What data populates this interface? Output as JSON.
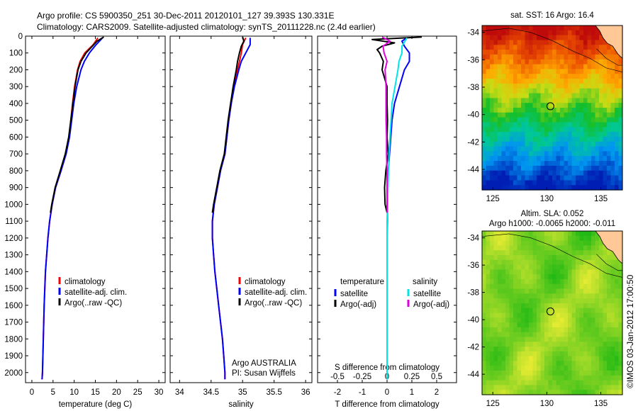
{
  "header": {
    "line1": "Argo profile: CS 5900350_251 30-Dec-2011 20120101_127 39.393S 130.331E",
    "line2": "Climatology: CARS2009. Satellite-adjusted climatology: synTS_20111228.nc (2.4d earlier)"
  },
  "colors": {
    "climatology": "#ff0000",
    "satellite": "#0000ff",
    "argo": "#000000",
    "salinity_satellite": "#00e5e5",
    "salinity_argo": "#e000e0"
  },
  "chart_data": [
    {
      "type": "line",
      "id": "temperature",
      "xlabel": "temperature (deg C)",
      "ylabel": "",
      "xlim": [
        -1.5,
        31.5
      ],
      "ylim": [
        2060,
        0
      ],
      "xticks": [
        "0",
        "5",
        "10",
        "15",
        "20",
        "25",
        "30"
      ],
      "xtick_values": [
        0,
        5,
        10,
        15,
        20,
        25,
        30
      ],
      "yticks": [
        "0",
        "100",
        "200",
        "300",
        "400",
        "500",
        "600",
        "700",
        "800",
        "900",
        "1000",
        "1100",
        "1200",
        "1300",
        "1400",
        "1500",
        "1600",
        "1700",
        "1800",
        "1900",
        "2000"
      ],
      "ytick_values": [
        0,
        100,
        200,
        300,
        400,
        500,
        600,
        700,
        800,
        900,
        1000,
        1100,
        1200,
        1300,
        1400,
        1500,
        1600,
        1700,
        1800,
        1900,
        2000
      ],
      "legend": {
        "placement": "lower-left",
        "entries": [
          "climatology",
          "satellite-adj. clim.",
          "Argo(..raw -QC)"
        ]
      },
      "series": [
        {
          "name": "climatology",
          "color": "#ff0000",
          "depth": [
            10,
            50,
            100,
            150,
            200,
            300,
            400,
            500,
            600,
            700,
            800,
            900,
            1000,
            1100,
            1200,
            1400,
            1600,
            1800,
            2000,
            2040
          ],
          "values": [
            15.6,
            14.5,
            12.5,
            11.4,
            10.8,
            10.1,
            9.6,
            9.2,
            8.8,
            8.0,
            6.9,
            5.6,
            4.8,
            4.2,
            3.8,
            3.2,
            2.9,
            2.7,
            2.5,
            2.4
          ]
        },
        {
          "name": "satellite-adj. clim.",
          "color": "#0000ff",
          "depth": [
            10,
            50,
            100,
            150,
            200,
            300,
            400,
            500,
            600,
            700,
            800,
            900,
            1000,
            1100,
            1200,
            1400,
            1600,
            1800,
            2000,
            2040
          ],
          "values": [
            16.7,
            15.2,
            13.6,
            12.4,
            11.6,
            10.6,
            9.9,
            9.4,
            8.9,
            8.1,
            6.9,
            5.6,
            4.8,
            4.2,
            3.8,
            3.2,
            2.9,
            2.7,
            2.5,
            2.4
          ]
        },
        {
          "name": "Argo(..raw -QC)",
          "color": "#000000",
          "depth": [
            5,
            30,
            60,
            100,
            150,
            200,
            300,
            400,
            500,
            600,
            700,
            800,
            900,
            1000,
            1050
          ],
          "values": [
            17.0,
            15.4,
            14.3,
            12.8,
            11.6,
            10.9,
            10.2,
            9.7,
            9.2,
            8.7,
            7.9,
            6.7,
            5.5,
            4.7,
            4.4
          ]
        }
      ]
    },
    {
      "type": "line",
      "id": "salinity",
      "xlabel": "salinity",
      "ylabel": "",
      "xlim": [
        33.85,
        36.1
      ],
      "ylim": [
        2060,
        0
      ],
      "xticks": [
        "34",
        "34.5",
        "35",
        "35.5",
        "36"
      ],
      "xtick_values": [
        34,
        34.5,
        35,
        35.5,
        36
      ],
      "legend": {
        "placement": "center-right",
        "entries": [
          "climatology",
          "satellite-adj. clim.",
          "Argo(..raw -QC)"
        ]
      },
      "annotation": [
        "Argo AUSTRALIA",
        "PI: Susan Wijffels"
      ],
      "series": [
        {
          "name": "climatology",
          "color": "#ff0000",
          "depth": [
            10,
            50,
            100,
            150,
            200,
            300,
            400,
            500,
            600,
            700,
            800,
            900,
            1000,
            1100,
            1200,
            1300,
            1400,
            1500,
            1600,
            1700,
            1800,
            1900,
            2000,
            2040
          ],
          "values": [
            35.05,
            35.0,
            34.98,
            34.95,
            34.92,
            34.86,
            34.82,
            34.78,
            34.75,
            34.72,
            34.65,
            34.6,
            34.55,
            34.52,
            34.52,
            34.54,
            34.56,
            34.59,
            34.62,
            34.65,
            34.68,
            34.7,
            34.72,
            34.72
          ]
        },
        {
          "name": "satellite-adj. clim.",
          "color": "#0000ff",
          "depth": [
            10,
            50,
            100,
            150,
            200,
            300,
            400,
            500,
            600,
            700,
            800,
            900,
            1000,
            1100,
            1200,
            1300,
            1400,
            1500,
            1600,
            1700,
            1800,
            1900,
            2000,
            2040
          ],
          "values": [
            35.12,
            35.12,
            35.05,
            34.98,
            34.94,
            34.87,
            34.82,
            34.78,
            34.75,
            34.72,
            34.65,
            34.6,
            34.55,
            34.52,
            34.52,
            34.54,
            34.56,
            34.59,
            34.62,
            34.65,
            34.68,
            34.7,
            34.72,
            34.72
          ]
        },
        {
          "name": "Argo(..raw -QC)",
          "color": "#000000",
          "depth": [
            5,
            30,
            60,
            100,
            150,
            200,
            300,
            400,
            500,
            600,
            700,
            800,
            900,
            1000,
            1050
          ],
          "values": [
            35.0,
            35.02,
            34.98,
            34.95,
            34.92,
            34.9,
            34.85,
            34.81,
            34.77,
            34.74,
            34.71,
            34.64,
            34.59,
            34.54,
            34.52
          ]
        }
      ]
    },
    {
      "type": "line",
      "id": "difference",
      "xlabel": "T difference from climatology",
      "xlabel_top": "S difference from climatology",
      "ylabel": "",
      "xlim": [
        -2.8,
        2.8
      ],
      "ylim": [
        2060,
        0
      ],
      "xticks": [
        "-2",
        "-1",
        "0",
        "1",
        "2"
      ],
      "xtick_values": [
        -2,
        -1,
        0,
        1,
        2
      ],
      "s_xticks": [
        "-0.5",
        "-0.25",
        "0",
        "0.25",
        "0.5"
      ],
      "s_xtick_values": [
        -0.5,
        -0.25,
        0,
        0.25,
        0.5
      ],
      "s_scale": 4,
      "legend": {
        "placement": "center",
        "headers": [
          "temperature",
          "salinity"
        ],
        "entries": [
          "satellite",
          "Argo(-adj)",
          "satellite",
          "Argo(-adj)"
        ]
      },
      "series": [
        {
          "name": "satellite",
          "group": "temperature",
          "color": "#0000ff",
          "depth": [
            10,
            30,
            60,
            100,
            150,
            200,
            300,
            400,
            500,
            600,
            700,
            800,
            900,
            1000,
            1100,
            1200,
            1400,
            1600,
            1800,
            2040
          ],
          "values": [
            0.8,
            0.6,
            0.7,
            0.9,
            0.9,
            0.7,
            0.5,
            0.3,
            0.2,
            0.15,
            0.1,
            0.05,
            0.03,
            0.02,
            0.01,
            0.0,
            0.0,
            0.0,
            0.0,
            0.0
          ]
        },
        {
          "name": "Argo(-adj)",
          "group": "temperature",
          "color": "#000000",
          "depth": [
            5,
            20,
            40,
            60,
            80,
            100,
            150,
            200,
            250,
            300,
            400,
            500,
            600,
            700,
            800,
            900,
            1000,
            1050
          ],
          "values": [
            1.4,
            -0.6,
            0.3,
            -0.2,
            -0.4,
            -0.3,
            -0.15,
            -0.2,
            -0.1,
            0.0,
            0.0,
            0.02,
            0.0,
            0.05,
            -0.05,
            -0.1,
            -0.08,
            0.0
          ]
        },
        {
          "name": "satellite",
          "group": "salinity",
          "color": "#00e5e5",
          "depth": [
            10,
            30,
            60,
            100,
            150,
            200,
            300,
            400,
            500,
            600,
            700,
            800,
            900,
            1000,
            1100,
            1200,
            1400,
            1600,
            1800,
            2040
          ],
          "values": [
            0.2,
            0.18,
            0.15,
            0.15,
            0.12,
            0.11,
            0.08,
            0.05,
            0.04,
            0.03,
            0.02,
            0.015,
            0.01,
            0.005,
            0.0,
            0.0,
            0.0,
            0.0,
            0.0,
            0.0
          ]
        },
        {
          "name": "Argo(-adj)",
          "group": "salinity",
          "color": "#e000e0",
          "depth": [
            5,
            30,
            60,
            100,
            150,
            200,
            300,
            400,
            500,
            600,
            700,
            800,
            900,
            1000,
            1050
          ],
          "values": [
            -0.05,
            0.03,
            -0.04,
            -0.03,
            0.0,
            -0.02,
            -0.01,
            -0.01,
            -0.01,
            -0.005,
            -0.005,
            0.0,
            0.0,
            0.0,
            0.0
          ]
        }
      ]
    },
    {
      "type": "heatmap",
      "id": "sst-map",
      "title": "sat. SST: 16 Argo: 16.4",
      "xlim": [
        124,
        137
      ],
      "ylim": [
        -45.5,
        -33.5
      ],
      "xticks": [
        "125",
        "130",
        "135"
      ],
      "xtick_values": [
        125,
        130,
        135
      ],
      "yticks": [
        "-34",
        "-36",
        "-38",
        "-40",
        "-42",
        "-44"
      ],
      "ytick_values": [
        -34,
        -36,
        -38,
        -40,
        -42,
        -44
      ],
      "marker": {
        "lon": 130.331,
        "lat": -39.393
      }
    },
    {
      "type": "heatmap",
      "id": "sla-map",
      "title": "Altim. SLA: 0.052",
      "subtitle": "Argo h1000: -0.0065 h2000: -0.011",
      "xlim": [
        124,
        137
      ],
      "ylim": [
        -45.5,
        -33.5
      ],
      "xticks": [
        "125",
        "130",
        "135"
      ],
      "xtick_values": [
        125,
        130,
        135
      ],
      "yticks": [
        "-34",
        "-36",
        "-38",
        "-40",
        "-42",
        "-44"
      ],
      "ytick_values": [
        -34,
        -36,
        -38,
        -40,
        -42,
        -44
      ],
      "marker": {
        "lon": 130.331,
        "lat": -39.393
      }
    }
  ],
  "credit": "©IMOS 03-Jan-2012 17:00:50"
}
